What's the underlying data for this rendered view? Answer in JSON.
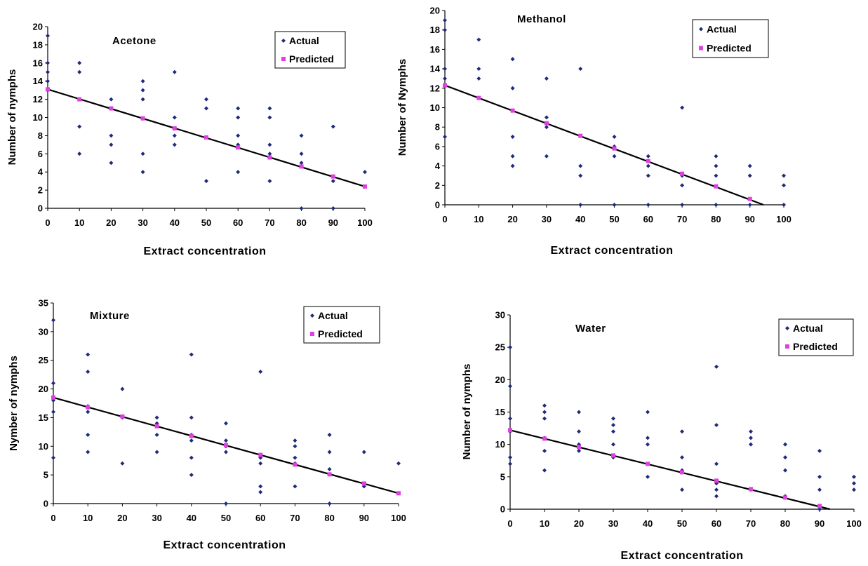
{
  "chart_data": [
    {
      "type": "scatter",
      "title": "Acetone",
      "xlabel": "Extract concentration",
      "ylabel": "Number of nymphs",
      "xlim": [
        0,
        100
      ],
      "ylim": [
        0,
        20
      ],
      "xticks": [
        0,
        10,
        20,
        30,
        40,
        50,
        60,
        70,
        80,
        90,
        100
      ],
      "yticks": [
        0,
        2,
        4,
        6,
        8,
        10,
        12,
        14,
        16,
        18,
        20
      ],
      "trendline": [
        [
          0,
          13.1
        ],
        [
          100,
          2.4
        ]
      ],
      "legend": [
        "Actual",
        "Predicted"
      ],
      "series": [
        {
          "name": "Actual",
          "color": "#1f2a7a",
          "points": [
            [
              0,
              19
            ],
            [
              0,
              16
            ],
            [
              0,
              15
            ],
            [
              0,
              14
            ],
            [
              0,
              13
            ],
            [
              10,
              16
            ],
            [
              10,
              15
            ],
            [
              10,
              12
            ],
            [
              10,
              9
            ],
            [
              10,
              6
            ],
            [
              20,
              12
            ],
            [
              20,
              8
            ],
            [
              20,
              7
            ],
            [
              20,
              5
            ],
            [
              30,
              14
            ],
            [
              30,
              13
            ],
            [
              30,
              12
            ],
            [
              30,
              6
            ],
            [
              30,
              4
            ],
            [
              40,
              15
            ],
            [
              40,
              10
            ],
            [
              40,
              8
            ],
            [
              40,
              7
            ],
            [
              50,
              12
            ],
            [
              50,
              11
            ],
            [
              50,
              3
            ],
            [
              60,
              11
            ],
            [
              60,
              10
            ],
            [
              60,
              8
            ],
            [
              60,
              7
            ],
            [
              60,
              4
            ],
            [
              70,
              11
            ],
            [
              70,
              10
            ],
            [
              70,
              7
            ],
            [
              70,
              6
            ],
            [
              70,
              3
            ],
            [
              80,
              8
            ],
            [
              80,
              6
            ],
            [
              80,
              5
            ],
            [
              80,
              0
            ],
            [
              90,
              9
            ],
            [
              90,
              3
            ],
            [
              90,
              0
            ],
            [
              100,
              4
            ]
          ]
        },
        {
          "name": "Predicted",
          "color": "#e040e0",
          "points": [
            [
              0,
              13.1
            ],
            [
              10,
              12.0
            ],
            [
              20,
              11.0
            ],
            [
              30,
              9.9
            ],
            [
              40,
              8.8
            ],
            [
              50,
              7.8
            ],
            [
              60,
              6.7
            ],
            [
              70,
              5.6
            ],
            [
              80,
              4.6
            ],
            [
              90,
              3.5
            ],
            [
              100,
              2.4
            ]
          ]
        }
      ]
    },
    {
      "type": "scatter",
      "title": "Methanol",
      "xlabel": "Extract concentration",
      "ylabel": "Number of Nymphs",
      "xlim": [
        0,
        100
      ],
      "ylim": [
        0,
        20
      ],
      "xticks": [
        0,
        10,
        20,
        30,
        40,
        50,
        60,
        70,
        80,
        90,
        100
      ],
      "yticks": [
        0,
        2,
        4,
        6,
        8,
        10,
        12,
        14,
        16,
        18,
        20
      ],
      "trendline": [
        [
          0,
          12.3
        ],
        [
          94,
          0
        ]
      ],
      "legend": [
        "Actual",
        "Predicted"
      ],
      "series": [
        {
          "name": "Actual",
          "color": "#1f2a7a",
          "points": [
            [
              0,
              19
            ],
            [
              0,
              18
            ],
            [
              0,
              14
            ],
            [
              0,
              13
            ],
            [
              0,
              7
            ],
            [
              10,
              17
            ],
            [
              10,
              14
            ],
            [
              10,
              13
            ],
            [
              20,
              15
            ],
            [
              20,
              12
            ],
            [
              20,
              7
            ],
            [
              20,
              5
            ],
            [
              20,
              4
            ],
            [
              30,
              13
            ],
            [
              30,
              9
            ],
            [
              30,
              8
            ],
            [
              30,
              5
            ],
            [
              40,
              14
            ],
            [
              40,
              4
            ],
            [
              40,
              3
            ],
            [
              40,
              0
            ],
            [
              50,
              7
            ],
            [
              50,
              6
            ],
            [
              50,
              5
            ],
            [
              50,
              0
            ],
            [
              60,
              5
            ],
            [
              60,
              4
            ],
            [
              60,
              3
            ],
            [
              60,
              0
            ],
            [
              70,
              10
            ],
            [
              70,
              3
            ],
            [
              70,
              2
            ],
            [
              70,
              0
            ],
            [
              80,
              5
            ],
            [
              80,
              4
            ],
            [
              80,
              3
            ],
            [
              80,
              0
            ],
            [
              90,
              4
            ],
            [
              90,
              3
            ],
            [
              90,
              0
            ],
            [
              100,
              3
            ],
            [
              100,
              2
            ],
            [
              100,
              0
            ]
          ]
        },
        {
          "name": "Predicted",
          "color": "#e040e0",
          "points": [
            [
              0,
              12.3
            ],
            [
              10,
              11.0
            ],
            [
              20,
              9.7
            ],
            [
              30,
              8.4
            ],
            [
              40,
              7.1
            ],
            [
              50,
              5.8
            ],
            [
              60,
              4.5
            ],
            [
              70,
              3.2
            ],
            [
              80,
              1.9
            ],
            [
              90,
              0.6
            ]
          ]
        }
      ]
    },
    {
      "type": "scatter",
      "title": "Mixture",
      "xlabel": "Extract concentration",
      "ylabel": "Nymber of nymphs",
      "xlim": [
        0,
        100
      ],
      "ylim": [
        0,
        35
      ],
      "xticks": [
        0,
        10,
        20,
        30,
        40,
        50,
        60,
        70,
        80,
        90,
        100
      ],
      "yticks": [
        0,
        5,
        10,
        15,
        20,
        25,
        30,
        35
      ],
      "trendline": [
        [
          0,
          18.5
        ],
        [
          100,
          1.8
        ]
      ],
      "legend": [
        "Actual",
        "Predicted"
      ],
      "series": [
        {
          "name": "Actual",
          "color": "#1f2a7a",
          "points": [
            [
              0,
              32
            ],
            [
              0,
              21
            ],
            [
              0,
              18
            ],
            [
              0,
              16
            ],
            [
              0,
              8
            ],
            [
              10,
              26
            ],
            [
              10,
              23
            ],
            [
              10,
              17
            ],
            [
              10,
              16
            ],
            [
              10,
              12
            ],
            [
              10,
              9
            ],
            [
              20,
              20
            ],
            [
              20,
              15
            ],
            [
              20,
              7
            ],
            [
              30,
              15
            ],
            [
              30,
              14
            ],
            [
              30,
              12
            ],
            [
              30,
              9
            ],
            [
              40,
              26
            ],
            [
              40,
              15
            ],
            [
              40,
              12
            ],
            [
              40,
              11
            ],
            [
              40,
              8
            ],
            [
              40,
              5
            ],
            [
              50,
              14
            ],
            [
              50,
              11
            ],
            [
              50,
              10
            ],
            [
              50,
              9
            ],
            [
              50,
              0
            ],
            [
              60,
              23
            ],
            [
              60,
              8
            ],
            [
              60,
              7
            ],
            [
              60,
              3
            ],
            [
              60,
              2
            ],
            [
              70,
              11
            ],
            [
              70,
              10
            ],
            [
              70,
              8
            ],
            [
              70,
              7
            ],
            [
              70,
              3
            ],
            [
              80,
              12
            ],
            [
              80,
              9
            ],
            [
              80,
              6
            ],
            [
              80,
              0
            ],
            [
              90,
              9
            ],
            [
              90,
              3
            ],
            [
              100,
              7
            ]
          ]
        },
        {
          "name": "Predicted",
          "color": "#e040e0",
          "points": [
            [
              0,
              18.5
            ],
            [
              10,
              16.8
            ],
            [
              20,
              15.2
            ],
            [
              30,
              13.5
            ],
            [
              40,
              11.8
            ],
            [
              50,
              10.2
            ],
            [
              60,
              8.5
            ],
            [
              70,
              6.8
            ],
            [
              80,
              5.1
            ],
            [
              90,
              3.5
            ],
            [
              100,
              1.8
            ]
          ]
        }
      ]
    },
    {
      "type": "scatter",
      "title": "Water",
      "xlabel": "Extract concentration",
      "ylabel": "Number of nymphs",
      "xlim": [
        0,
        100
      ],
      "ylim": [
        0,
        30
      ],
      "xticks": [
        0,
        10,
        20,
        30,
        40,
        50,
        60,
        70,
        80,
        90,
        100
      ],
      "yticks": [
        0,
        5,
        10,
        15,
        20,
        25,
        30
      ],
      "trendline": [
        [
          0,
          12.2
        ],
        [
          93,
          0
        ]
      ],
      "legend": [
        "Actual",
        "Predicted"
      ],
      "series": [
        {
          "name": "Actual",
          "color": "#1f2a7a",
          "points": [
            [
              0,
              25
            ],
            [
              0,
              19
            ],
            [
              0,
              14
            ],
            [
              0,
              12
            ],
            [
              0,
              8
            ],
            [
              0,
              7
            ],
            [
              10,
              16
            ],
            [
              10,
              15
            ],
            [
              10,
              14
            ],
            [
              10,
              11
            ],
            [
              10,
              9
            ],
            [
              10,
              6
            ],
            [
              20,
              15
            ],
            [
              20,
              12
            ],
            [
              20,
              10
            ],
            [
              20,
              9
            ],
            [
              30,
              14
            ],
            [
              30,
              13
            ],
            [
              30,
              12
            ],
            [
              30,
              10
            ],
            [
              30,
              8
            ],
            [
              40,
              15
            ],
            [
              40,
              11
            ],
            [
              40,
              10
            ],
            [
              40,
              7
            ],
            [
              40,
              5
            ],
            [
              50,
              12
            ],
            [
              50,
              8
            ],
            [
              50,
              6
            ],
            [
              50,
              3
            ],
            [
              60,
              22
            ],
            [
              60,
              13
            ],
            [
              60,
              7
            ],
            [
              60,
              4
            ],
            [
              60,
              3
            ],
            [
              60,
              2
            ],
            [
              70,
              12
            ],
            [
              70,
              11
            ],
            [
              70,
              10
            ],
            [
              70,
              3
            ],
            [
              80,
              10
            ],
            [
              80,
              8
            ],
            [
              80,
              6
            ],
            [
              80,
              2
            ],
            [
              90,
              9
            ],
            [
              90,
              5
            ],
            [
              90,
              3
            ],
            [
              90,
              0
            ],
            [
              100,
              5
            ],
            [
              100,
              4
            ],
            [
              100,
              3
            ]
          ]
        },
        {
          "name": "Predicted",
          "color": "#e040e0",
          "points": [
            [
              0,
              12.2
            ],
            [
              10,
              10.9
            ],
            [
              20,
              9.6
            ],
            [
              30,
              8.3
            ],
            [
              40,
              7.0
            ],
            [
              50,
              5.7
            ],
            [
              60,
              4.4
            ],
            [
              70,
              3.1
            ],
            [
              80,
              1.8
            ],
            [
              90,
              0.5
            ]
          ]
        }
      ]
    }
  ]
}
